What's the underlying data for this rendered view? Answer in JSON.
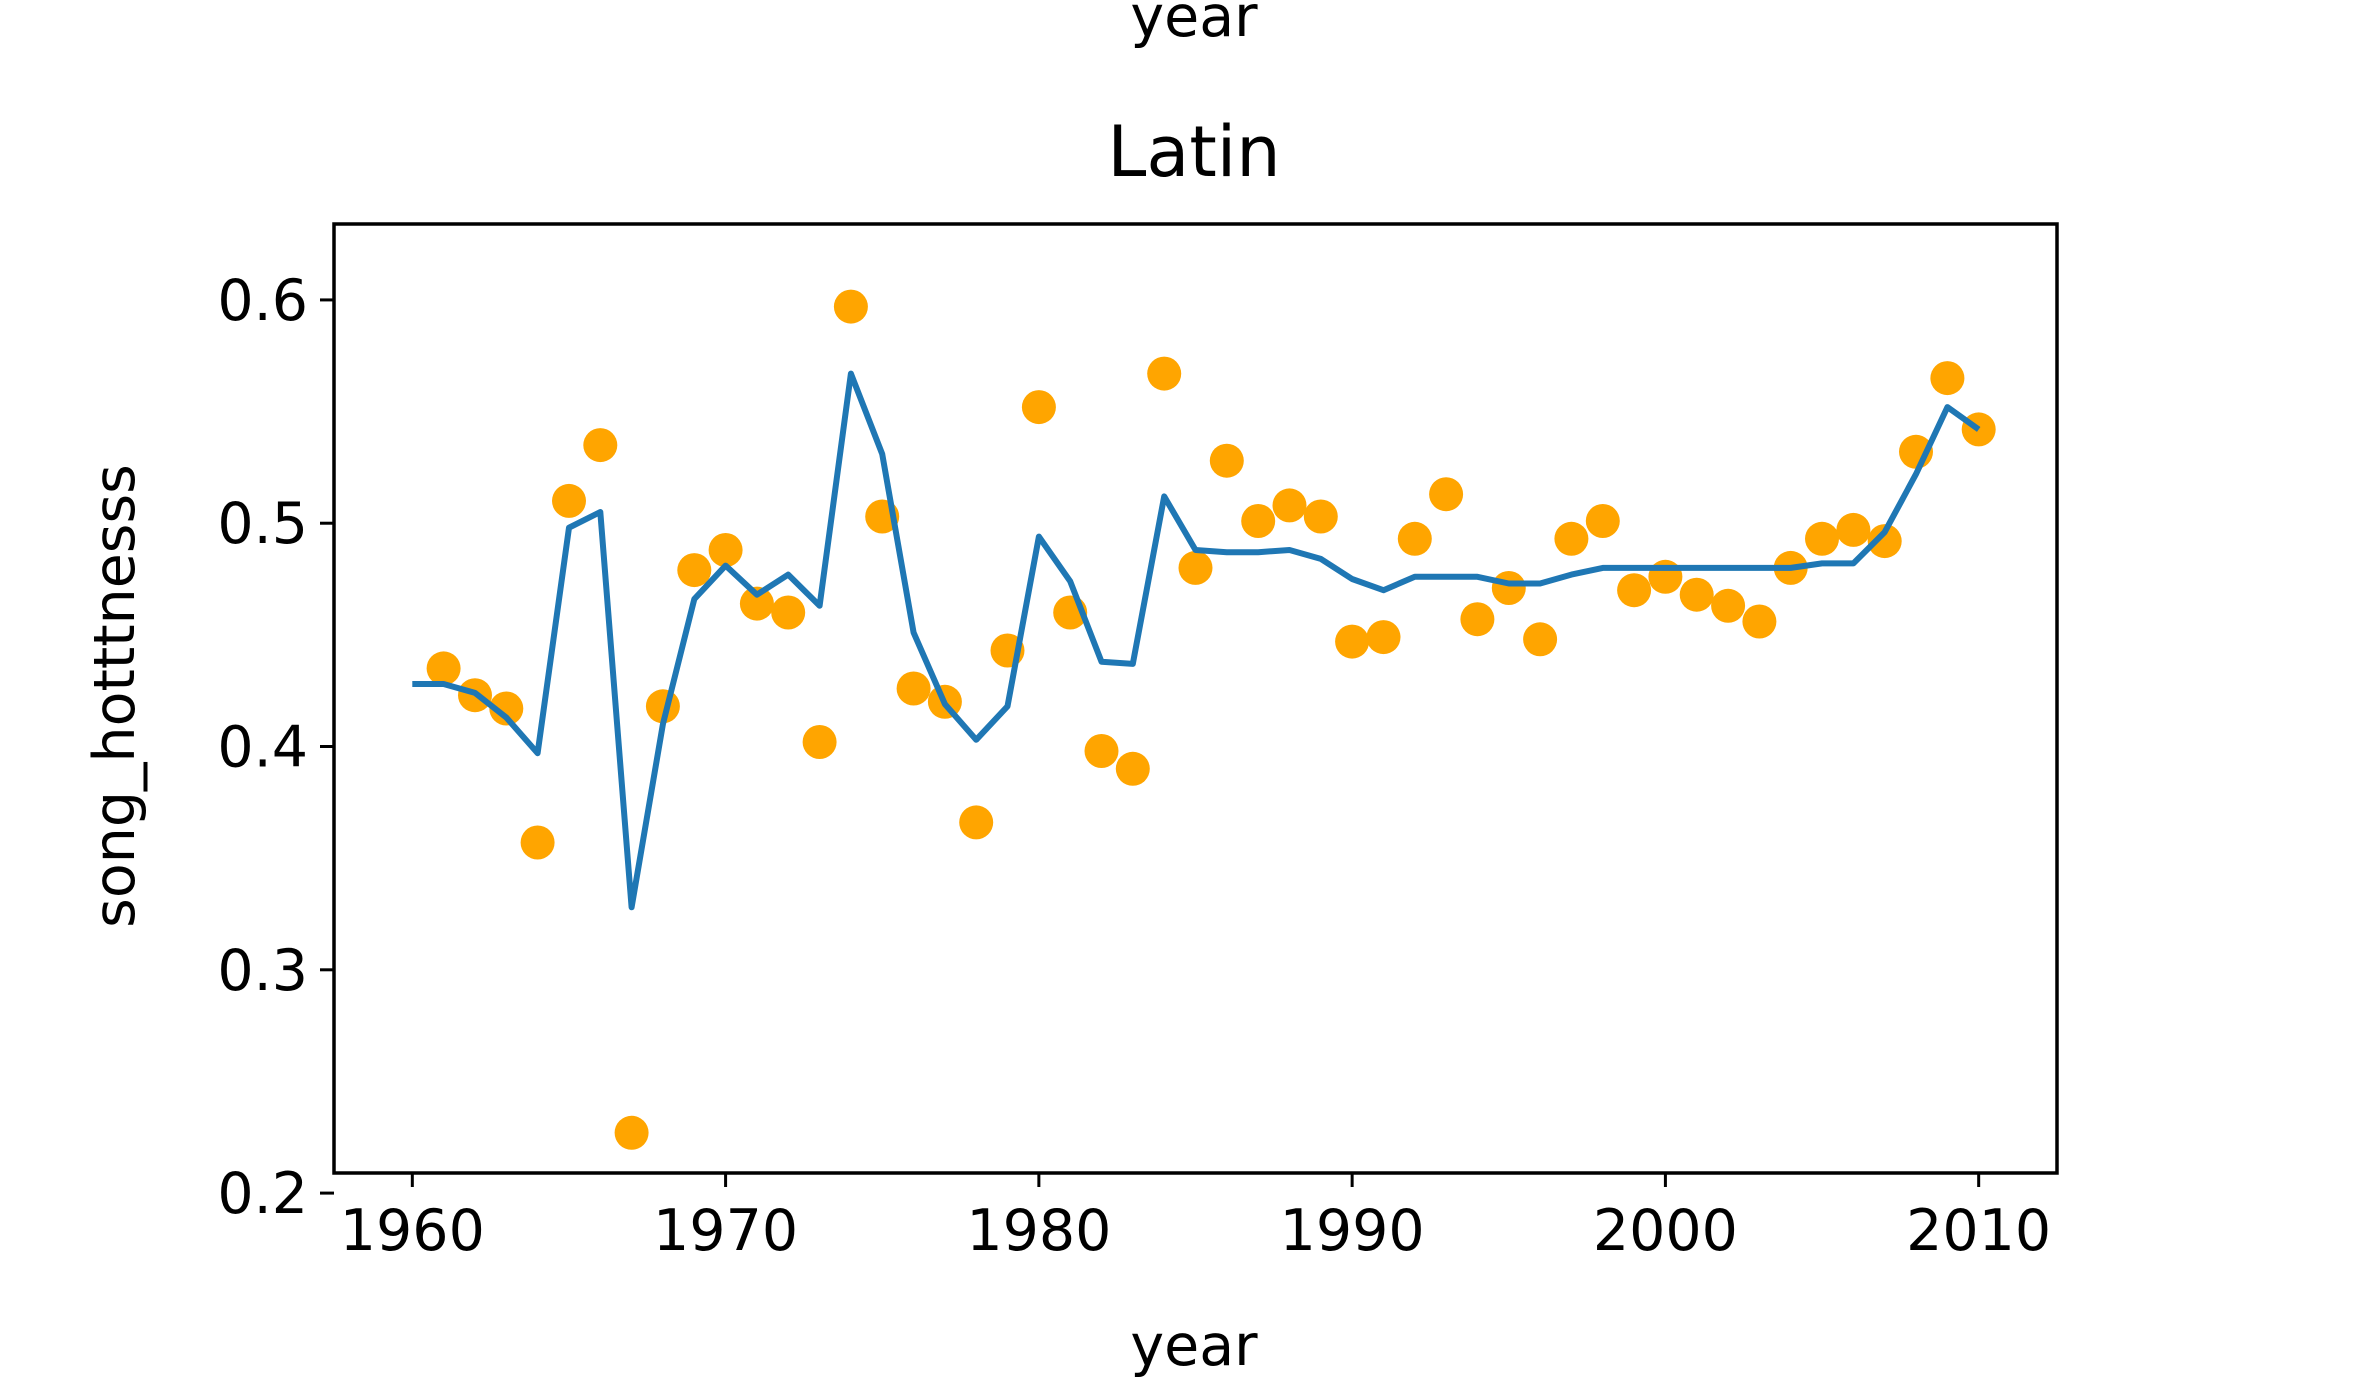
{
  "top_cut_label": "year",
  "chart_data": {
    "type": "line",
    "title": "Latin",
    "xlabel": "year",
    "ylabel": "song_hotttnesss",
    "xlim": [
      1957.5,
      2012.5
    ],
    "ylim": [
      0.209,
      0.634
    ],
    "xticks": [
      1960,
      1970,
      1980,
      1990,
      2000,
      2010
    ],
    "xtick_labels": [
      "1960",
      "1970",
      "1980",
      "1990",
      "2000",
      "2010"
    ],
    "yticks": [
      0.2,
      0.3,
      0.4,
      0.5,
      0.6
    ],
    "ytick_labels": [
      "0.2",
      "0.3",
      "0.4",
      "0.5",
      "0.6"
    ],
    "grid": false,
    "legend": "none",
    "series": [
      {
        "kind": "scatter",
        "color": "#ffa500",
        "points": [
          [
            1961,
            0.435
          ],
          [
            1962,
            0.423
          ],
          [
            1963,
            0.417
          ],
          [
            1964,
            0.357
          ],
          [
            1965,
            0.51
          ],
          [
            1966,
            0.535
          ],
          [
            1967,
            0.227
          ],
          [
            1968,
            0.418
          ],
          [
            1969,
            0.479
          ],
          [
            1970,
            0.488
          ],
          [
            1971,
            0.464
          ],
          [
            1972,
            0.46
          ],
          [
            1973,
            0.402
          ],
          [
            1974,
            0.597
          ],
          [
            1975,
            0.503
          ],
          [
            1976,
            0.426
          ],
          [
            1977,
            0.42
          ],
          [
            1978,
            0.366
          ],
          [
            1979,
            0.443
          ],
          [
            1980,
            0.552
          ],
          [
            1981,
            0.46
          ],
          [
            1982,
            0.398
          ],
          [
            1983,
            0.39
          ],
          [
            1984,
            0.567
          ],
          [
            1985,
            0.48
          ],
          [
            1986,
            0.528
          ],
          [
            1987,
            0.501
          ],
          [
            1988,
            0.508
          ],
          [
            1989,
            0.503
          ],
          [
            1990,
            0.447
          ],
          [
            1991,
            0.449
          ],
          [
            1992,
            0.493
          ],
          [
            1993,
            0.513
          ],
          [
            1994,
            0.457
          ],
          [
            1995,
            0.471
          ],
          [
            1996,
            0.448
          ],
          [
            1997,
            0.493
          ],
          [
            1998,
            0.501
          ],
          [
            1999,
            0.47
          ],
          [
            2000,
            0.476
          ],
          [
            2001,
            0.468
          ],
          [
            2002,
            0.463
          ],
          [
            2003,
            0.456
          ],
          [
            2004,
            0.48
          ],
          [
            2005,
            0.493
          ],
          [
            2006,
            0.497
          ],
          [
            2007,
            0.492
          ],
          [
            2008,
            0.532
          ],
          [
            2009,
            0.565
          ],
          [
            2010,
            0.542
          ]
        ]
      },
      {
        "kind": "line",
        "color": "#1f77b4",
        "points": [
          [
            1960,
            0.428
          ],
          [
            1961,
            0.428
          ],
          [
            1962,
            0.424
          ],
          [
            1963,
            0.413
          ],
          [
            1964,
            0.397
          ],
          [
            1965,
            0.498
          ],
          [
            1966,
            0.505
          ],
          [
            1967,
            0.328
          ],
          [
            1968,
            0.41
          ],
          [
            1969,
            0.466
          ],
          [
            1970,
            0.481
          ],
          [
            1971,
            0.468
          ],
          [
            1972,
            0.477
          ],
          [
            1973,
            0.463
          ],
          [
            1974,
            0.567
          ],
          [
            1975,
            0.531
          ],
          [
            1976,
            0.451
          ],
          [
            1977,
            0.419
          ],
          [
            1978,
            0.403
          ],
          [
            1979,
            0.418
          ],
          [
            1980,
            0.494
          ],
          [
            1981,
            0.474
          ],
          [
            1982,
            0.438
          ],
          [
            1983,
            0.437
          ],
          [
            1984,
            0.512
          ],
          [
            1985,
            0.488
          ],
          [
            1986,
            0.487
          ],
          [
            1987,
            0.487
          ],
          [
            1988,
            0.488
          ],
          [
            1989,
            0.484
          ],
          [
            1990,
            0.475
          ],
          [
            1991,
            0.47
          ],
          [
            1992,
            0.476
          ],
          [
            1993,
            0.476
          ],
          [
            1994,
            0.476
          ],
          [
            1995,
            0.473
          ],
          [
            1996,
            0.473
          ],
          [
            1997,
            0.477
          ],
          [
            1998,
            0.48
          ],
          [
            1999,
            0.48
          ],
          [
            2000,
            0.48
          ],
          [
            2001,
            0.48
          ],
          [
            2002,
            0.48
          ],
          [
            2003,
            0.48
          ],
          [
            2004,
            0.48
          ],
          [
            2005,
            0.482
          ],
          [
            2006,
            0.482
          ],
          [
            2007,
            0.496
          ],
          [
            2008,
            0.522
          ],
          [
            2009,
            0.552
          ],
          [
            2010,
            0.542
          ]
        ]
      }
    ]
  }
}
